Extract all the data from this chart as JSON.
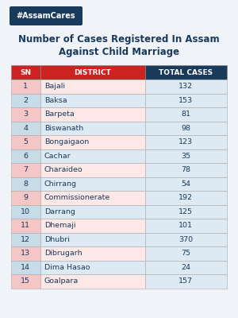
{
  "hashtag": "#AssamCares",
  "title_line1": "Number of Cases Registered In Assam",
  "title_line2": "Against Child Marriage",
  "col_headers": [
    "SN",
    "DISTRICT",
    "TOTAL CASES"
  ],
  "rows": [
    [
      1,
      "Bajali",
      132
    ],
    [
      2,
      "Baksa",
      153
    ],
    [
      3,
      "Barpeta",
      81
    ],
    [
      4,
      "Biswanath",
      98
    ],
    [
      5,
      "Bongaigaon",
      123
    ],
    [
      6,
      "Cachar",
      35
    ],
    [
      7,
      "Charaideo",
      78
    ],
    [
      8,
      "Chirrang",
      54
    ],
    [
      9,
      "Commissionerate",
      192
    ],
    [
      10,
      "Darrang",
      125
    ],
    [
      11,
      "Dhemaji",
      101
    ],
    [
      12,
      "Dhubri",
      370
    ],
    [
      13,
      "Dibrugarh",
      75
    ],
    [
      14,
      "Dima Hasao",
      24
    ],
    [
      15,
      "Goalpara",
      157
    ]
  ],
  "bg_color": "#f0f4f8",
  "header_red_color": "#cc2222",
  "header_navy_color": "#1a3a5c",
  "header_text_color": "#ffffff",
  "row_odd_sn_color": "#f5c6c6",
  "row_even_sn_color": "#c8dce8",
  "row_odd_district_color": "#fde8e8",
  "row_even_district_color": "#ddeaf4",
  "row_cases_color": "#ddeaf4",
  "hashtag_bg": "#1a3a5c",
  "hashtag_text_color": "#ffffff",
  "title_color": "#1a3a5c",
  "border_color": "#aaaaaa",
  "text_color": "#1a3a5c"
}
